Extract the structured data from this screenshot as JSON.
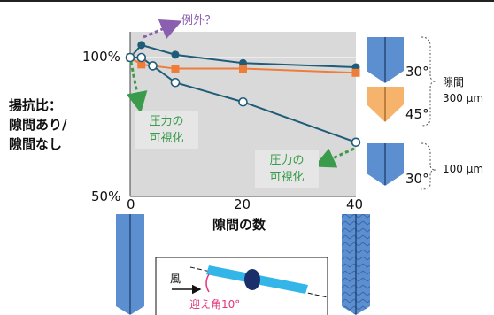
{
  "chart_data": {
    "type": "line",
    "xlabel": "隙間の数",
    "ylabel_lines": [
      "揚抗比：",
      "隙間あり/",
      "隙間なし"
    ],
    "x_ticks": [
      "0",
      "20",
      "40"
    ],
    "y_ticks": [
      "100%",
      "50%"
    ],
    "xlim": [
      0,
      40
    ],
    "ylim": [
      50,
      100
    ],
    "grid": true,
    "series": [
      {
        "points": [
          [
            0,
            100
          ],
          [
            2,
            104.5
          ],
          [
            8,
            101
          ],
          [
            20,
            98
          ],
          [
            40,
            96.5
          ]
        ],
        "marker": "filled-circle",
        "color": "#1f5c7a"
      },
      {
        "points": [
          [
            0,
            100
          ],
          [
            2,
            97.5
          ],
          [
            8,
            96
          ],
          [
            20,
            96
          ],
          [
            40,
            94.5
          ]
        ],
        "marker": "square",
        "color": "#ee7d3a"
      },
      {
        "points": [
          [
            0,
            100
          ],
          [
            2,
            100
          ],
          [
            4,
            97
          ],
          [
            8,
            91
          ],
          [
            20,
            84
          ],
          [
            40,
            69.5
          ]
        ],
        "marker": "open-circle",
        "color": "#1f5c7a"
      }
    ]
  },
  "annotations": {
    "exception": "例外？",
    "visualization_1": [
      "圧力の",
      "可視化"
    ],
    "visualization_2": [
      "圧力の",
      "可視化"
    ]
  },
  "legend": {
    "gap_label_lines": [
      "隙間",
      "300 µm"
    ],
    "gap_small": "100 µm",
    "angles": [
      "30°",
      "45°",
      "30°"
    ]
  },
  "inset": {
    "wind": "風",
    "angle_of_attack": "迎え角10°"
  },
  "colors": {
    "blue_wing": "#5b8fd0",
    "orange_wing": "#f6b36b",
    "dark_series": "#1f5c7a",
    "orange_series": "#ee7d3a",
    "green_annotation": "#3a9c4a",
    "purple_annotation": "#8a5fb0"
  }
}
